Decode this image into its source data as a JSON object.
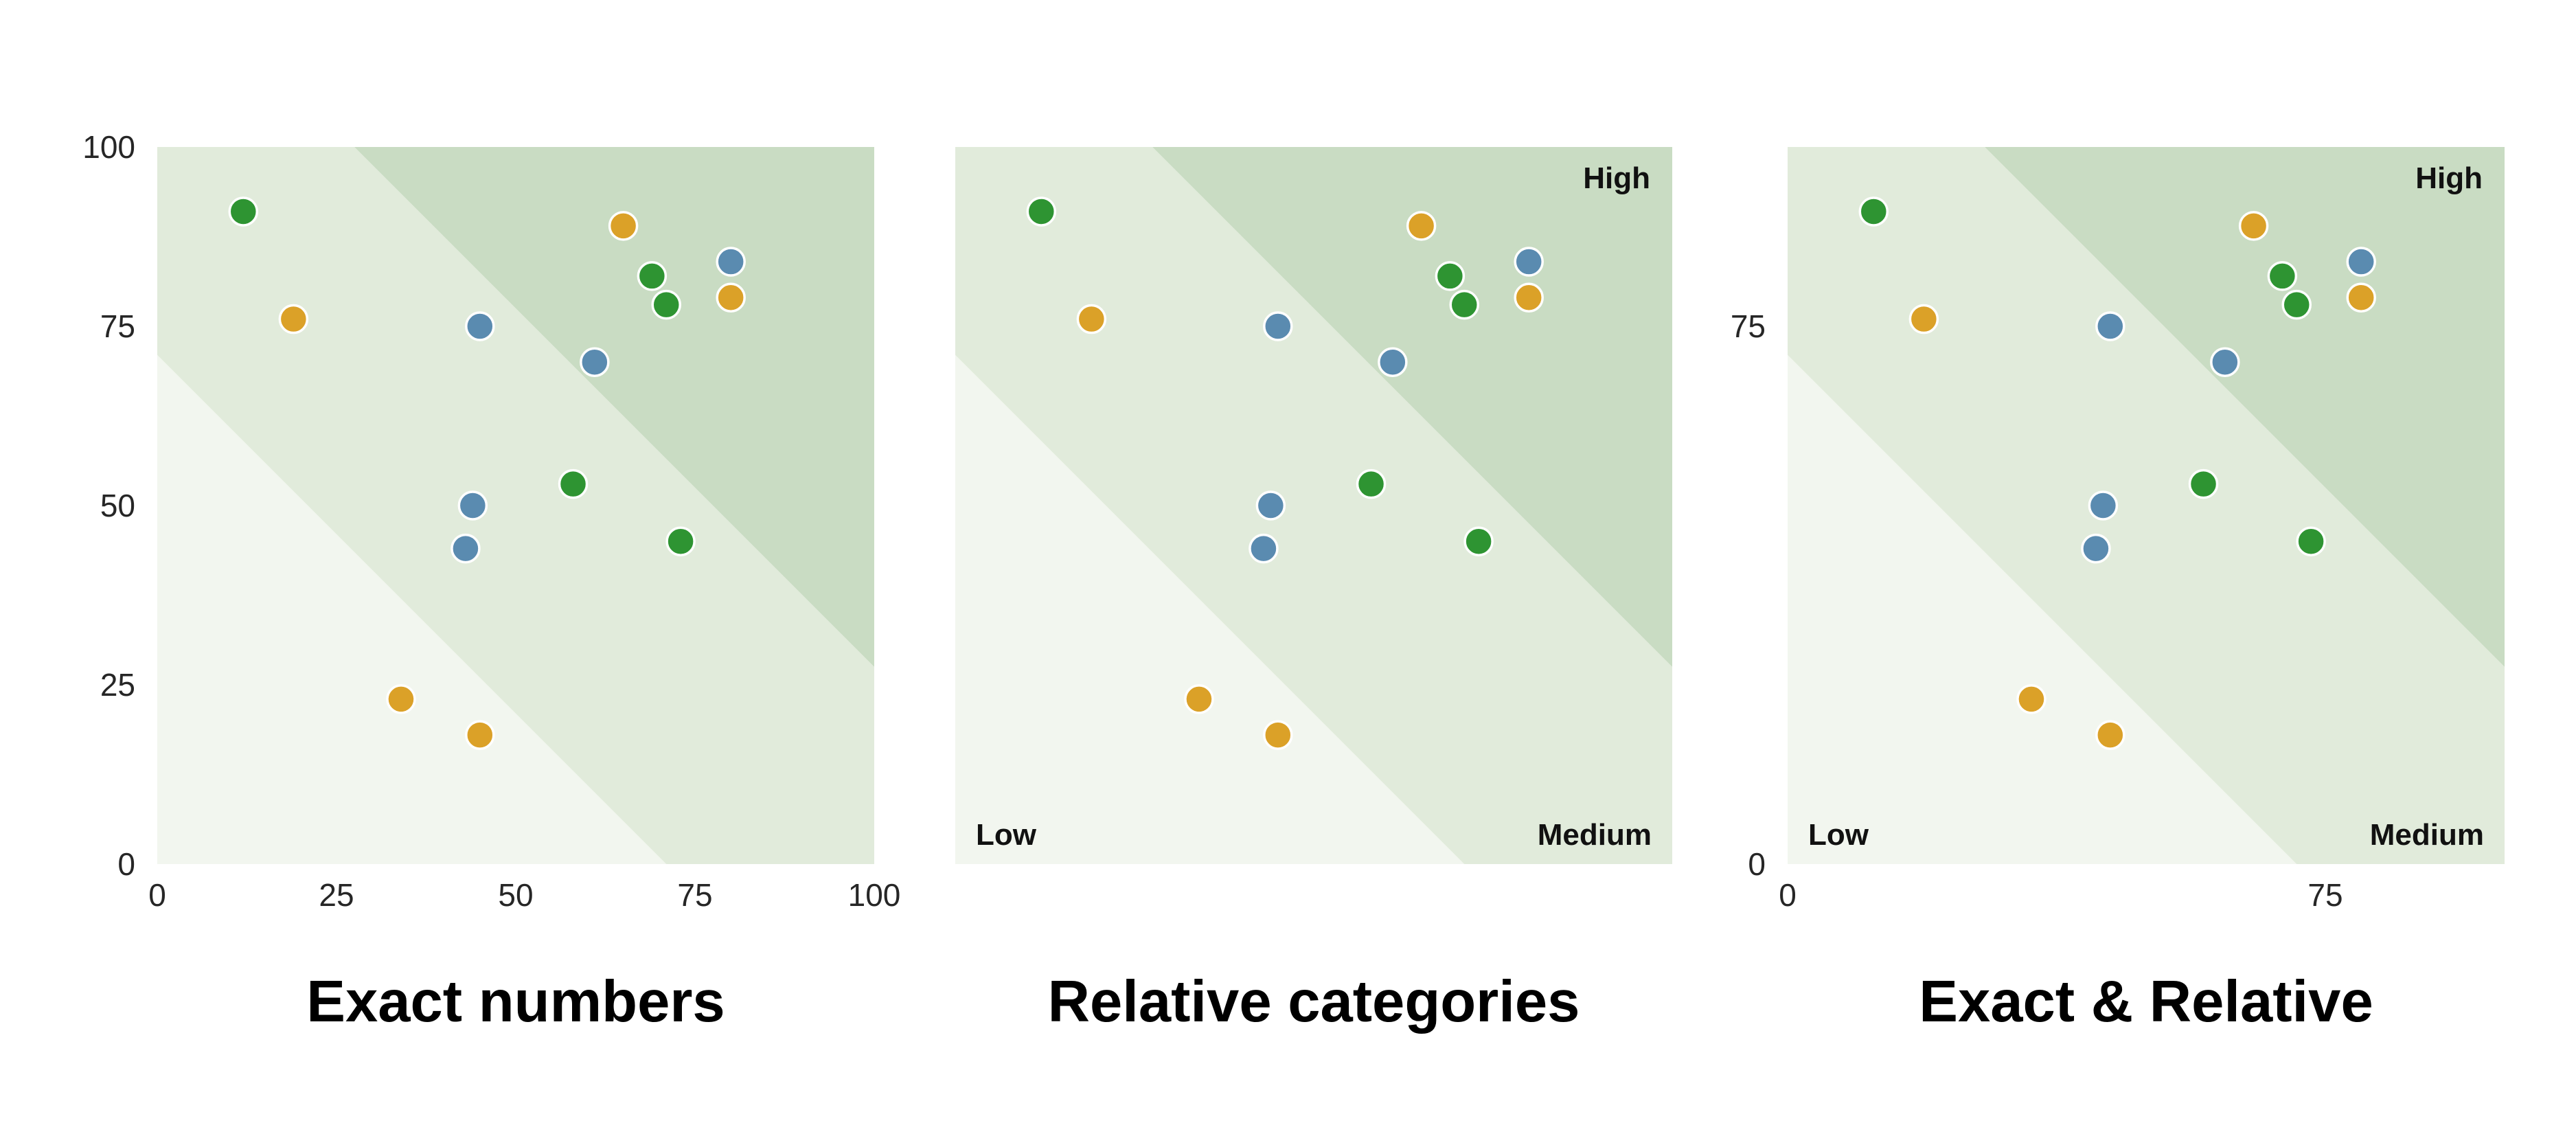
{
  "chart_data": {
    "type": "scatter",
    "axis_range": [
      0,
      100
    ],
    "panels": [
      {
        "title": "Exact numbers",
        "x_ticks": [
          "0",
          "25",
          "50",
          "75",
          "100"
        ],
        "x_tick_values": [
          0,
          25,
          50,
          75,
          100
        ],
        "y_ticks": [
          "0",
          "25",
          "50",
          "75",
          "100"
        ],
        "y_tick_values": [
          0,
          25,
          50,
          75,
          100
        ],
        "corner_labels": null
      },
      {
        "title": "Relative categories",
        "x_ticks": [],
        "x_tick_values": [],
        "y_ticks": [],
        "y_tick_values": [],
        "corner_labels": {
          "top_right": "High",
          "bottom_left": "Low",
          "bottom_right": "Medium"
        }
      },
      {
        "title": "Exact & Relative",
        "x_ticks": [
          "0",
          "75"
        ],
        "x_tick_values": [
          0,
          75
        ],
        "y_ticks": [
          "0",
          "75"
        ],
        "y_tick_values": [
          0,
          75
        ],
        "corner_labels": {
          "top_right": "High",
          "bottom_left": "Low",
          "bottom_right": "Medium"
        }
      }
    ],
    "series": [
      {
        "name": "green",
        "color": "#2E9432",
        "points": [
          [
            12,
            91
          ],
          [
            69,
            82
          ],
          [
            71,
            78
          ],
          [
            58,
            53
          ],
          [
            73,
            45
          ]
        ]
      },
      {
        "name": "orange",
        "color": "#DBA128",
        "points": [
          [
            65,
            89
          ],
          [
            80,
            79
          ],
          [
            19,
            76
          ],
          [
            34,
            23
          ],
          [
            45,
            18
          ]
        ]
      },
      {
        "name": "blue",
        "color": "#5A8BB0",
        "points": [
          [
            80,
            84
          ],
          [
            45,
            75
          ],
          [
            61,
            70
          ],
          [
            44,
            50
          ],
          [
            43,
            44
          ]
        ]
      }
    ],
    "bands": {
      "labels": [
        "Low",
        "Medium",
        "High"
      ],
      "colors": {
        "low": "#F2F6EF",
        "medium": "#E1EBDB",
        "high": "#C9DCC3"
      },
      "low_medium_boundary_sum": 71,
      "medium_high_boundary_sum": 127.5
    },
    "point_style": {
      "radius": 20,
      "stroke": "#FFFFFF",
      "stroke_width": 3.5
    }
  }
}
